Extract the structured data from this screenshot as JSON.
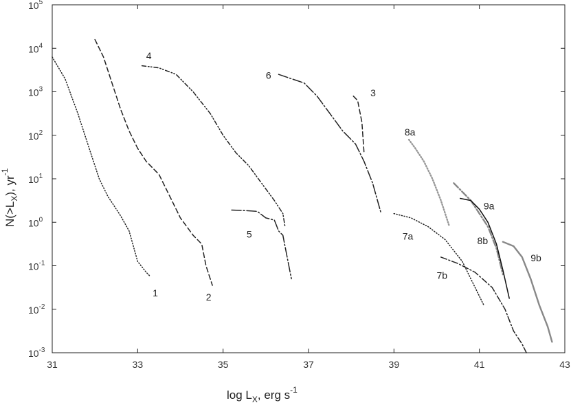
{
  "chart_data": {
    "type": "line",
    "title": "",
    "xlabel": "log L",
    "xlabel_sub": "X",
    "xlabel_unit": ",  erg s",
    "xlabel_sup": "-1",
    "ylabel": "N(>L",
    "ylabel_sub": "X",
    "ylabel_unit": "), yr",
    "ylabel_sup": "-1",
    "xlim": [
      31,
      43
    ],
    "ylim_log10": [
      -3,
      5
    ],
    "log_y": true,
    "grid": false,
    "x_ticks": [
      31,
      33,
      35,
      37,
      39,
      41,
      43
    ],
    "x_tick_labels": [
      "31",
      "33",
      "35",
      "37",
      "39",
      "41",
      "43"
    ],
    "y_ticks_log10": [
      -3,
      -2,
      -1,
      0,
      1,
      2,
      3,
      4,
      5
    ],
    "y_tick_base": "10",
    "y_tick_exponents": [
      "-3",
      "-2",
      "-1",
      "0",
      "1",
      "2",
      "3",
      "4",
      "5"
    ],
    "series": [
      {
        "name": "1",
        "style": "dotted",
        "color": "#222222",
        "x": [
          31.0,
          31.3,
          31.6,
          31.9,
          32.1,
          32.3,
          32.5,
          32.6,
          32.8,
          33.0,
          33.2,
          33.3
        ],
        "log_y": [
          3.8,
          3.3,
          2.5,
          1.6,
          1.0,
          0.6,
          0.3,
          0.15,
          -0.2,
          -0.9,
          -1.15,
          -1.25
        ]
      },
      {
        "name": "2",
        "style": "dashed",
        "color": "#222222",
        "x": [
          32.0,
          32.2,
          32.4,
          32.6,
          32.8,
          33.0,
          33.2,
          33.5,
          33.8,
          34.0,
          34.3,
          34.5,
          34.6,
          34.75
        ],
        "log_y": [
          4.2,
          3.8,
          3.2,
          2.6,
          2.1,
          1.7,
          1.4,
          1.1,
          0.5,
          0.1,
          -0.3,
          -0.5,
          -1.0,
          -1.45
        ]
      },
      {
        "name": "3",
        "style": "dashed",
        "color": "#222222",
        "x": [
          38.05,
          38.15,
          38.25,
          38.3
        ],
        "log_y": [
          2.9,
          2.8,
          2.3,
          1.6
        ]
      },
      {
        "name": "4",
        "style": "dash-dot-dot",
        "color": "#222222",
        "x": [
          33.1,
          33.5,
          33.9,
          34.3,
          34.7,
          35.0,
          35.3,
          35.6,
          35.9,
          36.2,
          36.4,
          36.45
        ],
        "log_y": [
          3.6,
          3.55,
          3.4,
          3.0,
          2.5,
          2.0,
          1.6,
          1.3,
          0.9,
          0.5,
          0.2,
          -0.1
        ]
      },
      {
        "name": "5",
        "style": "long-dash-dot",
        "color": "#222222",
        "x": [
          35.2,
          35.5,
          35.8,
          36.0,
          36.2,
          36.3,
          36.4,
          36.5,
          36.6
        ],
        "log_y": [
          0.28,
          0.27,
          0.25,
          0.1,
          0.05,
          -0.2,
          -0.3,
          -0.8,
          -1.3
        ]
      },
      {
        "name": "6",
        "style": "long-dash-dot",
        "color": "#222222",
        "x": [
          36.3,
          36.6,
          36.9,
          37.2,
          37.5,
          37.8,
          38.1,
          38.3,
          38.5,
          38.7
        ],
        "log_y": [
          3.4,
          3.3,
          3.2,
          2.9,
          2.5,
          2.1,
          1.8,
          1.4,
          0.9,
          0.2
        ]
      },
      {
        "name": "7a",
        "style": "dotted",
        "color": "#222222",
        "x": [
          39.0,
          39.4,
          39.8,
          40.2,
          40.6,
          40.9,
          41.1
        ],
        "log_y": [
          0.2,
          0.1,
          -0.1,
          -0.4,
          -0.9,
          -1.5,
          -1.9
        ]
      },
      {
        "name": "7b",
        "style": "dash-dot",
        "color": "#222222",
        "x": [
          40.1,
          40.5,
          40.9,
          41.3,
          41.6,
          41.8,
          42.0,
          42.1
        ],
        "log_y": [
          -0.8,
          -0.95,
          -1.15,
          -1.5,
          -2.0,
          -2.5,
          -2.8,
          -3.0
        ]
      },
      {
        "name": "8a",
        "style": "dotted",
        "color": "#999999",
        "x": [
          39.35,
          39.5,
          39.7,
          39.9,
          40.1,
          40.2,
          40.3
        ],
        "log_y": [
          1.9,
          1.7,
          1.4,
          1.0,
          0.5,
          0.2,
          -0.1
        ]
      },
      {
        "name": "8b",
        "style": "dash-dot",
        "color": "#888888",
        "x": [
          40.4,
          40.6,
          40.8,
          41.0,
          41.2,
          41.4,
          41.55
        ],
        "log_y": [
          0.9,
          0.7,
          0.5,
          0.2,
          -0.1,
          -0.6,
          -1.2
        ]
      },
      {
        "name": "9a",
        "style": "solid",
        "color": "#111111",
        "x": [
          40.55,
          40.8,
          41.0,
          41.2,
          41.4,
          41.55,
          41.7
        ],
        "log_y": [
          0.55,
          0.5,
          0.3,
          0.0,
          -0.5,
          -1.1,
          -1.75
        ]
      },
      {
        "name": "9b",
        "style": "solid",
        "color": "#888888",
        "x": [
          41.55,
          41.8,
          42.0,
          42.2,
          42.4,
          42.6,
          42.7
        ],
        "log_y": [
          -0.45,
          -0.55,
          -0.8,
          -1.3,
          -1.9,
          -2.4,
          -2.75
        ]
      }
    ],
    "curve_labels": [
      {
        "text": "1",
        "x": 33.35,
        "log_y": -1.7
      },
      {
        "text": "2",
        "x": 34.6,
        "log_y": -1.8
      },
      {
        "text": "3",
        "x": 38.45,
        "log_y": 2.9
      },
      {
        "text": "4",
        "x": 33.2,
        "log_y": 3.75
      },
      {
        "text": "5",
        "x": 35.55,
        "log_y": -0.35
      },
      {
        "text": "6",
        "x": 36.0,
        "log_y": 3.3
      },
      {
        "text": "7a",
        "x": 39.2,
        "log_y": -0.4
      },
      {
        "text": "7b",
        "x": 40.0,
        "log_y": -1.3
      },
      {
        "text": "8a",
        "x": 39.25,
        "log_y": 2.0
      },
      {
        "text": "8b",
        "x": 40.95,
        "log_y": -0.5
      },
      {
        "text": "9a",
        "x": 41.1,
        "log_y": 0.3
      },
      {
        "text": "9b",
        "x": 42.2,
        "log_y": -0.9
      }
    ]
  }
}
